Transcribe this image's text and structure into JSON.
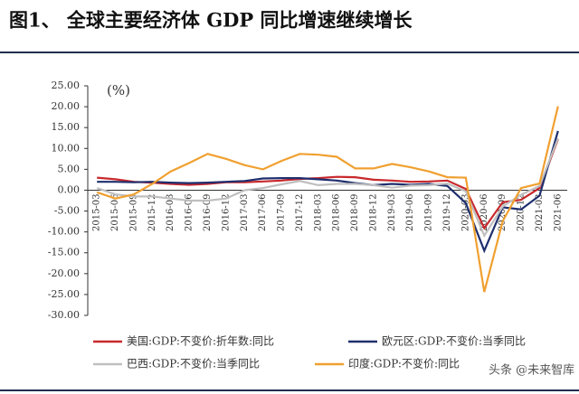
{
  "chart_data": {
    "type": "line",
    "title": "图1、 全球主要经济体 GDP 同比增速继续增长",
    "unit": "(%)",
    "watermark": "头条 @未来智库",
    "categories": [
      "2015-03",
      "2015-06",
      "2015-09",
      "2015-12",
      "2016-03",
      "2016-06",
      "2016-09",
      "2016-12",
      "2017-03",
      "2017-06",
      "2017-09",
      "2017-12",
      "2018-03",
      "2018-06",
      "2018-09",
      "2018-12",
      "2019-03",
      "2019-06",
      "2019-09",
      "2019-12",
      "2020-03",
      "2020-06",
      "2020-09",
      "2020-12",
      "2021-03",
      "2021-06"
    ],
    "series": [
      {
        "name": "美国:GDP:不变价:折年数:同比",
        "color": "#c8282c",
        "values": [
          3.0,
          2.6,
          2.0,
          1.8,
          1.5,
          1.3,
          1.5,
          1.9,
          1.9,
          2.1,
          2.3,
          2.7,
          2.9,
          3.2,
          3.1,
          2.5,
          2.3,
          2.0,
          2.1,
          2.3,
          0.3,
          -9.1,
          -2.9,
          -2.3,
          0.5,
          12.2
        ]
      },
      {
        "name": "欧元区:GDP:不变价:当季同比",
        "color": "#1f2f6e",
        "values": [
          2.0,
          2.0,
          1.9,
          2.0,
          1.8,
          1.7,
          1.8,
          2.0,
          2.2,
          2.8,
          2.9,
          2.9,
          2.6,
          2.3,
          1.7,
          1.2,
          1.5,
          1.3,
          1.5,
          1.0,
          -3.1,
          -14.5,
          -4.1,
          -4.6,
          -1.3,
          14.2
        ]
      },
      {
        "name": "巴西:GDP:不变价:当季同比",
        "color": "#bfbfbf",
        "values": [
          0.5,
          -1.0,
          -1.5,
          -1.5,
          -2.0,
          -2.5,
          -2.5,
          -2.0,
          0.0,
          0.5,
          1.4,
          2.2,
          1.2,
          1.5,
          1.5,
          1.2,
          0.6,
          1.1,
          1.2,
          1.6,
          -0.3,
          -10.9,
          -3.9,
          -1.1,
          1.0,
          12.4
        ]
      },
      {
        "name": "印度:GDP:不变价:同比",
        "color": "#f0a030",
        "values": [
          -0.5,
          -2.0,
          -1.0,
          1.5,
          4.5,
          6.5,
          8.7,
          7.5,
          6.0,
          5.0,
          7.0,
          8.7,
          8.5,
          8.0,
          5.2,
          5.2,
          6.3,
          5.5,
          4.5,
          3.1,
          3.0,
          -24.4,
          -7.4,
          0.5,
          1.6,
          20.1
        ]
      }
    ],
    "ylim": [
      -30,
      25
    ],
    "yticks": [
      {
        "value": -30,
        "label": "-30.00"
      },
      {
        "value": -25,
        "label": "-25.00"
      },
      {
        "value": -20,
        "label": "-20.00"
      },
      {
        "value": -15,
        "label": "-15.00"
      },
      {
        "value": -10,
        "label": "-10.00"
      },
      {
        "value": -5,
        "label": "-5.00"
      },
      {
        "value": 0,
        "label": "0.00"
      },
      {
        "value": 5,
        "label": "5.00"
      },
      {
        "value": 10,
        "label": "10.00"
      },
      {
        "value": 15,
        "label": "15.00"
      },
      {
        "value": 20,
        "label": "20.00"
      },
      {
        "value": 25,
        "label": "25.00"
      }
    ],
    "grid": false
  }
}
